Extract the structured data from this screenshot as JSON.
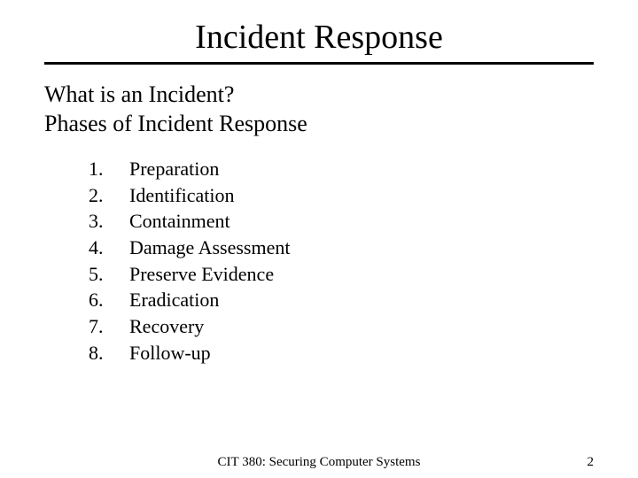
{
  "title": "Incident Response",
  "intro": {
    "line1": "What is an Incident?",
    "line2": "Phases of Incident Response"
  },
  "phases": [
    {
      "num": "1.",
      "label": "Preparation"
    },
    {
      "num": "2.",
      "label": "Identification"
    },
    {
      "num": "3.",
      "label": "Containment"
    },
    {
      "num": "4.",
      "label": "Damage Assessment"
    },
    {
      "num": "5.",
      "label": "Preserve Evidence"
    },
    {
      "num": "6.",
      "label": "Eradication"
    },
    {
      "num": "7.",
      "label": "Recovery"
    },
    {
      "num": "8.",
      "label": "Follow-up"
    }
  ],
  "footer": {
    "course": "CIT 380: Securing Computer Systems",
    "page": "2"
  },
  "style": {
    "background_color": "#ffffff",
    "text_color": "#000000",
    "rule_color": "#000000",
    "title_fontsize": 38,
    "intro_fontsize": 26,
    "list_fontsize": 22,
    "footer_fontsize": 15,
    "font_family": "Times New Roman"
  }
}
